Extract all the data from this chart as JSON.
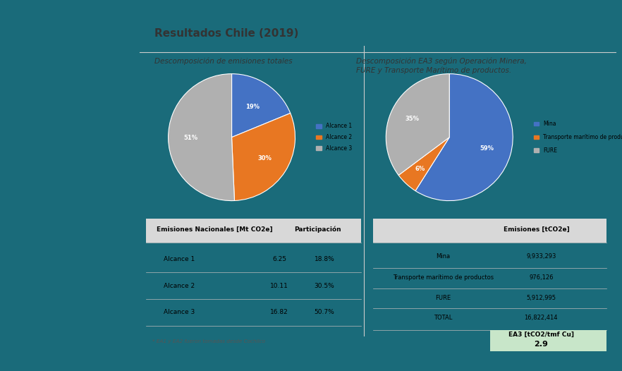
{
  "title": "Resultados Chile (2019)",
  "pie1_title": "Descomposición de emisiones totales",
  "pie1_values": [
    18.8,
    30.5,
    50.7
  ],
  "pie1_colors": [
    "#4472C4",
    "#E87722",
    "#B0B0B0"
  ],
  "pie1_labels": [
    "19%",
    "30%",
    "51%"
  ],
  "pie1_legend": [
    "Alcance 1",
    "Alcance 2",
    "Alcance 3"
  ],
  "pie1_startangle": 90,
  "pie2_title": "Descomposición EA3 según Operación Minera,\nFURE y Transporte Marítimo de productos.",
  "pie2_values": [
    59.0,
    5.8,
    35.2
  ],
  "pie2_colors": [
    "#4472C4",
    "#E87722",
    "#B0B0B0"
  ],
  "pie2_labels": [
    "59%",
    "6%",
    "35%"
  ],
  "pie2_legend": [
    "Mina",
    "Transporte marítimo de productos",
    "FURE"
  ],
  "pie2_startangle": 90,
  "table1_header": [
    "Emisiones Nacionales [Mt CO2e]",
    "Participación"
  ],
  "table1_rows": [
    [
      "Alcance 1",
      "6.25",
      "18.8%"
    ],
    [
      "Alcance 2",
      "10.11",
      "30.5%"
    ],
    [
      "Alcance 3",
      "16.82",
      "50.7%"
    ]
  ],
  "table1_note": "* EA1 y EA2 fueron tomadas desde Cochilco",
  "table2_header": [
    "",
    "Emisiones [tCO2e]"
  ],
  "table2_rows": [
    [
      "Mina",
      "9,933,293"
    ],
    [
      "Transporte marítimo de productos",
      "976,126"
    ],
    [
      "FURE",
      "5,912,995"
    ],
    [
      "TOTAL",
      "16,822,414"
    ]
  ],
  "table2_footer_label": "EA3 [tCO2/tmf Cu]",
  "table2_footer_value": "2.9"
}
